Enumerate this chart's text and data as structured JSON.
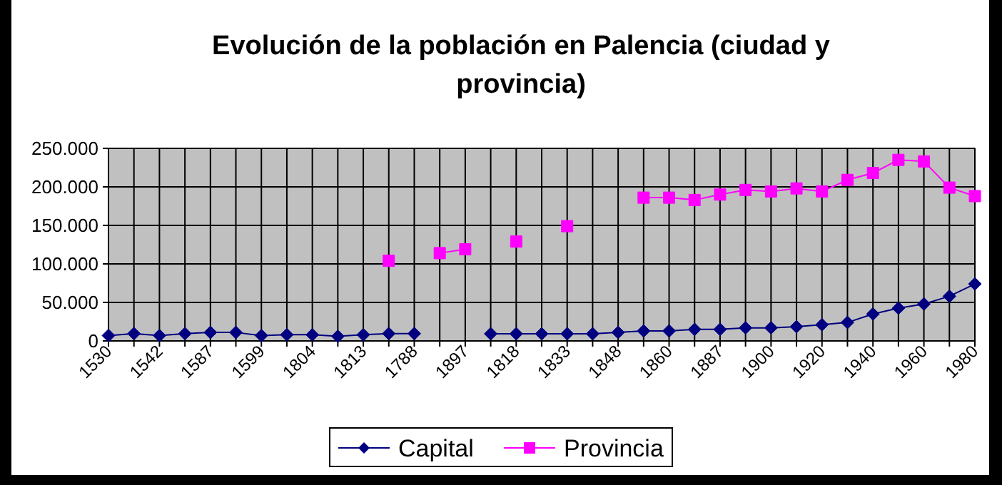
{
  "chart_data": {
    "type": "line",
    "title": "Evolución de la población en Palencia (ciudad y provincia)",
    "categories": [
      "1530",
      null,
      "1542",
      null,
      "1587",
      null,
      "1599",
      null,
      "1804",
      null,
      "1813",
      null,
      "1788",
      null,
      "1897",
      null,
      "1818",
      null,
      "1833",
      null,
      "1848",
      null,
      "1860",
      null,
      "1887",
      null,
      "1900",
      null,
      "1920",
      null,
      "1940",
      null,
      "1960",
      null,
      "1980"
    ],
    "series": [
      {
        "name": "Capital",
        "color": "#000080",
        "marker": "diamond",
        "values": [
          7000,
          9500,
          7000,
          9500,
          11000,
          11000,
          7000,
          8000,
          8000,
          6000,
          8000,
          9500,
          9500,
          null,
          null,
          9300,
          9300,
          9300,
          9300,
          9300,
          11000,
          13000,
          13000,
          15000,
          15000,
          17000,
          17000,
          18500,
          21000,
          24000,
          35000,
          42500,
          48000,
          58000,
          74000
        ]
      },
      {
        "name": "Provincia",
        "color": "#ff00ff",
        "marker": "square",
        "values": [
          null,
          null,
          null,
          null,
          null,
          null,
          null,
          null,
          null,
          null,
          null,
          104000,
          null,
          114000,
          119000,
          null,
          129000,
          null,
          149000,
          null,
          null,
          186000,
          186000,
          183000,
          190000,
          196000,
          194000,
          198000,
          194000,
          209000,
          218000,
          235000,
          233000,
          199000,
          188000
        ]
      }
    ],
    "ylim": [
      0,
      250000
    ],
    "yticks": [
      {
        "value": 0,
        "label": "0"
      },
      {
        "value": 50000,
        "label": "50.000"
      },
      {
        "value": 100000,
        "label": "100.000"
      },
      {
        "value": 150000,
        "label": "150.000"
      },
      {
        "value": 200000,
        "label": "200.000"
      },
      {
        "value": 250000,
        "label": "250.000"
      }
    ],
    "grid": true,
    "legend": "bottom",
    "line_style": "solid"
  }
}
